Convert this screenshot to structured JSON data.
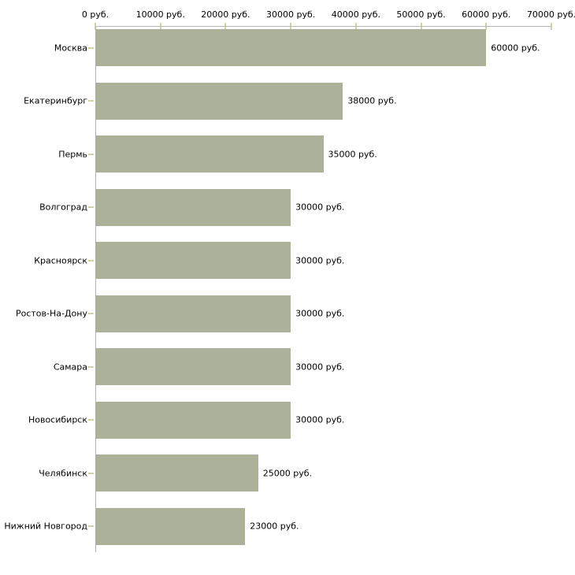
{
  "chart_data": {
    "type": "bar",
    "orientation": "horizontal",
    "title": "",
    "categories": [
      "Москва",
      "Екатеринбург",
      "Пермь",
      "Волгоград",
      "Красноярск",
      "Ростов-На-Дону",
      "Самара",
      "Новосибирск",
      "Челябинск",
      "Нижний Новгород"
    ],
    "values": [
      60000,
      38000,
      35000,
      30000,
      30000,
      30000,
      30000,
      30000,
      25000,
      23000
    ],
    "value_labels": [
      "60000 руб.",
      "38000 руб.",
      "35000 руб.",
      "30000 руб.",
      "30000 руб.",
      "30000 руб.",
      "30000 руб.",
      "30000 руб.",
      "25000 руб.",
      "23000 руб."
    ],
    "x_ticks": [
      0,
      10000,
      20000,
      30000,
      40000,
      50000,
      60000,
      70000
    ],
    "x_tick_labels": [
      "0 руб.",
      "10000 руб.",
      "20000 руб.",
      "30000 руб.",
      "40000 руб.",
      "50000 руб.",
      "60000 руб.",
      "70000 руб."
    ],
    "xlim": [
      0,
      70000
    ],
    "unit": "руб.",
    "xlabel": "",
    "ylabel": "",
    "grid": false,
    "legend": false,
    "colors": {
      "bar_fill": "#acb29a",
      "axis_line": "#b4b4b4",
      "tick_mark": "#d2d2a8",
      "text": "#000000",
      "background": "#ffffff"
    }
  }
}
